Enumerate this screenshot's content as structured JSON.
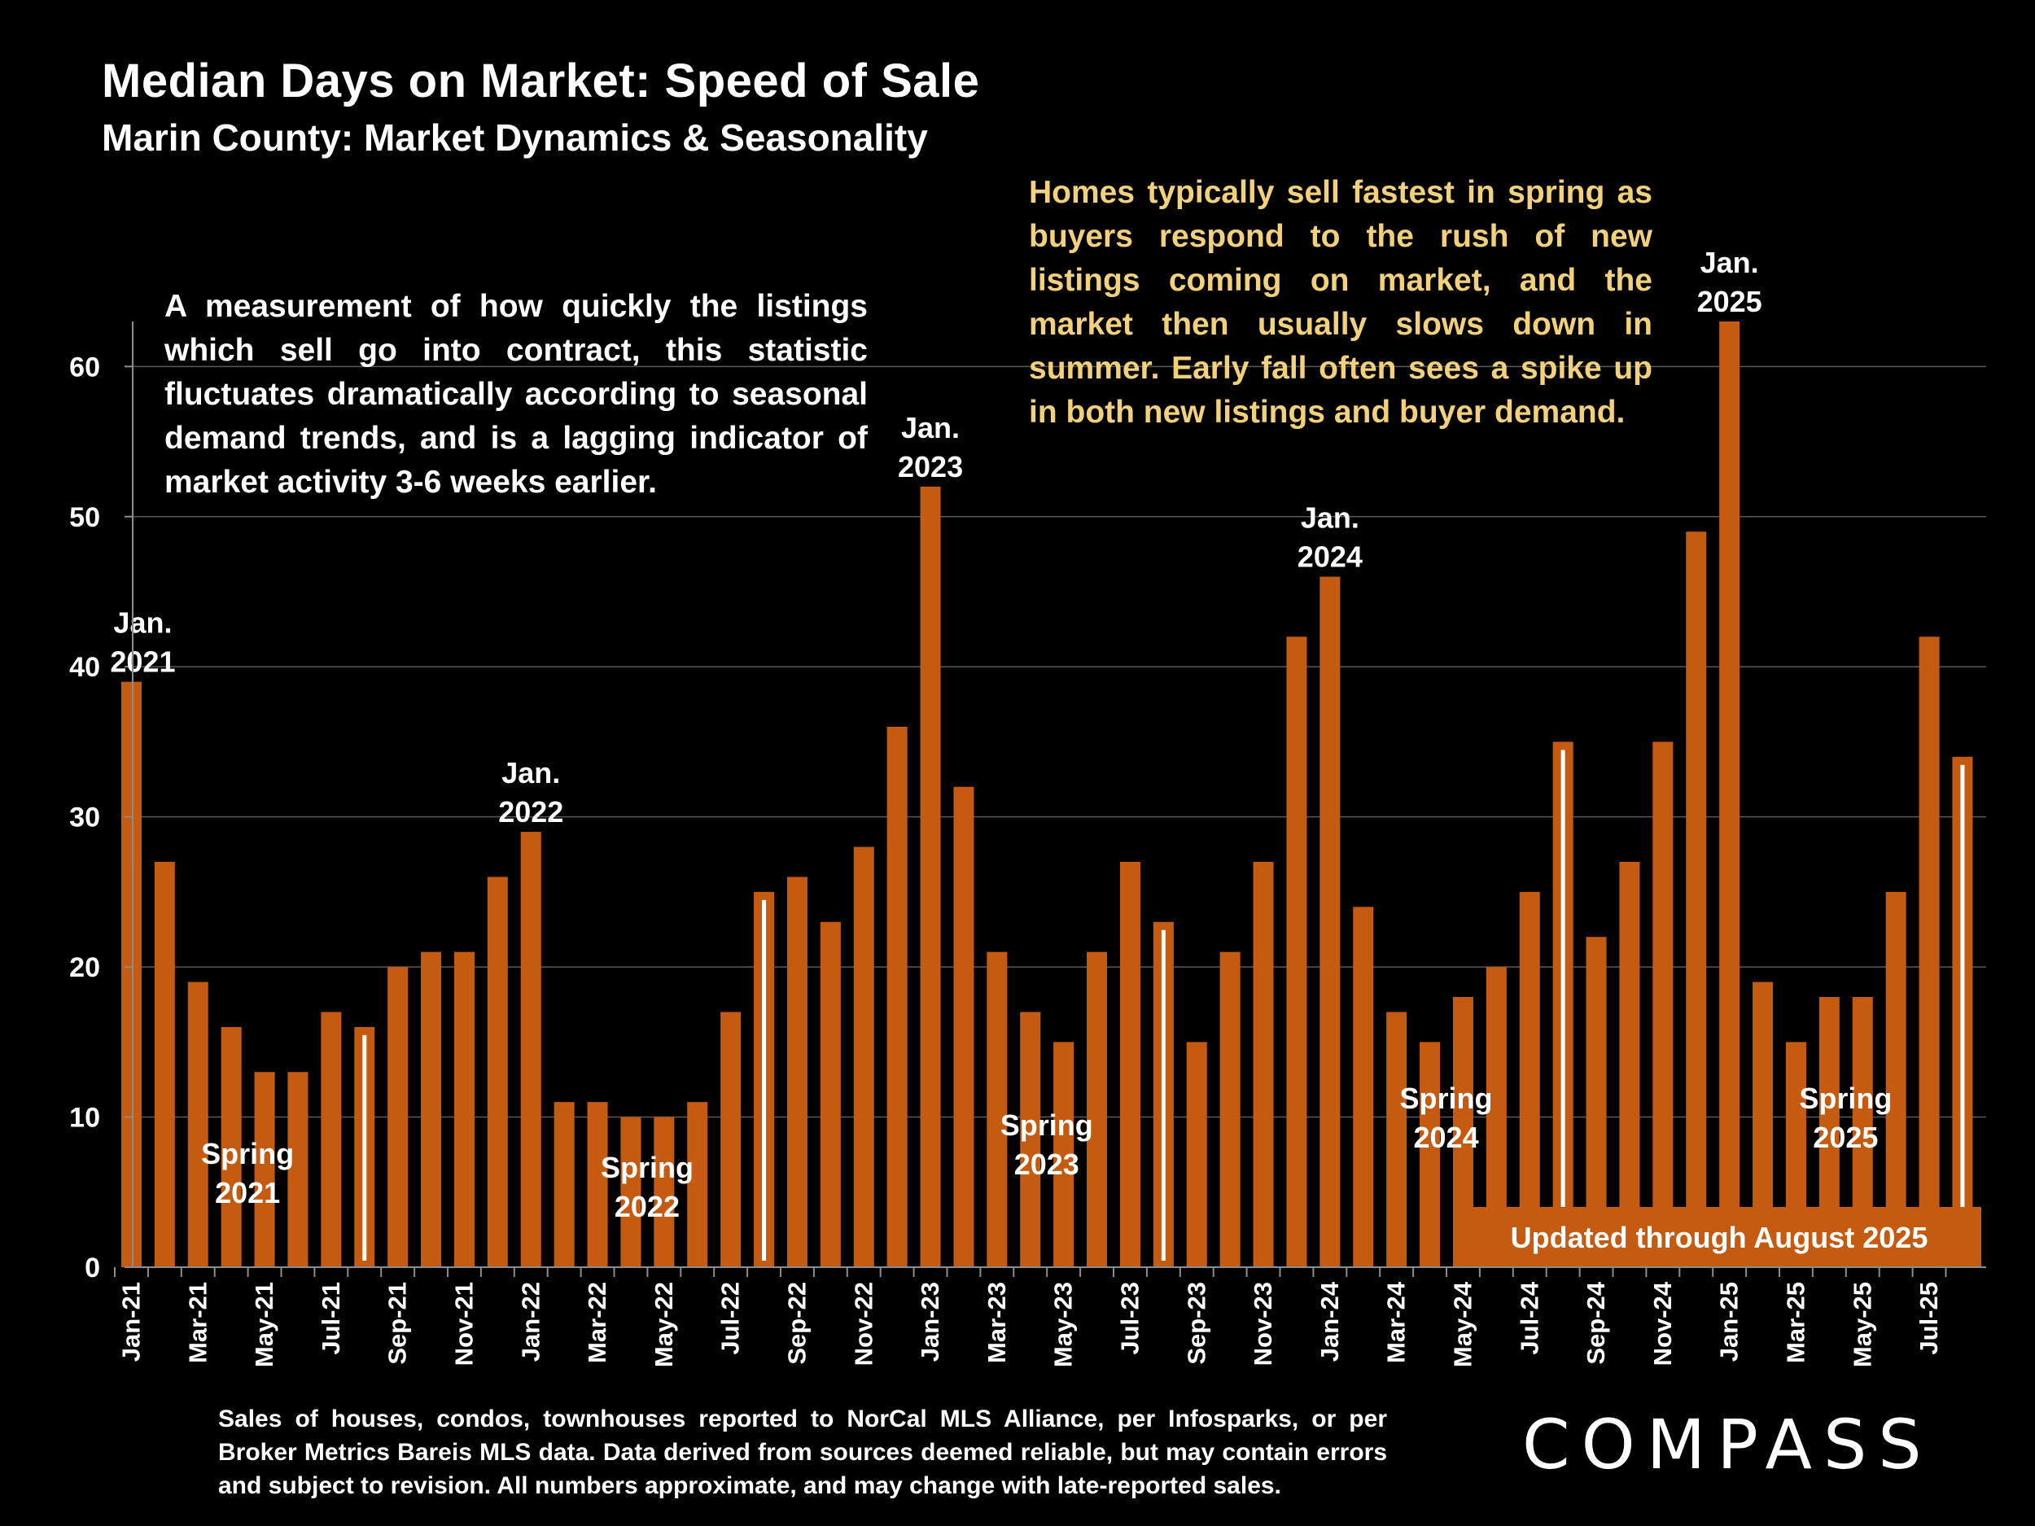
{
  "header": {
    "title": "Median Days on Market:  Speed of Sale",
    "subtitle": "Marin County: Market Dynamics & Seasonality"
  },
  "notes": {
    "left": "A measurement of how quickly the listings which sell go into contract, this statistic fluctuates dramatically according to seasonal demand trends, and is a lagging indicator of market activity 3-6 weeks earlier.",
    "right": "Homes typically sell fastest in spring as buyers respond to the rush of new listings coming on market, and the market then usually slows down in summer. Early fall often sees a spike up in both new listings and buyer demand."
  },
  "footer": {
    "source": "Sales of houses, condos, townhouses reported to NorCal MLS Alliance, per Infosparks, or per Broker Metrics Bareis MLS data. Data derived from sources deemed reliable, but may contain errors and subject to revision. All numbers approximate, and may change with late-reported sales.",
    "logo": "COMPASS"
  },
  "badge": {
    "text": "Updated through August 2025"
  },
  "colors": {
    "bar": "#c55a11",
    "background": "#000000",
    "gridline": "#595959",
    "note_highlight": "#f3d07a",
    "divider": "#ffffff"
  },
  "chart_data": {
    "type": "bar",
    "title": "Median Days on Market:  Speed of Sale",
    "subtitle": "Marin County: Market Dynamics & Seasonality",
    "xlabel": "",
    "ylabel": "",
    "ylim": [
      0,
      63
    ],
    "yticks": [
      0,
      10,
      20,
      30,
      40,
      50,
      60
    ],
    "grid": true,
    "categories": [
      "Jan-21",
      "Feb-21",
      "Mar-21",
      "Apr-21",
      "May-21",
      "Jun-21",
      "Jul-21",
      "Aug-21",
      "Sep-21",
      "Oct-21",
      "Nov-21",
      "Dec-21",
      "Jan-22",
      "Feb-22",
      "Mar-22",
      "Apr-22",
      "May-22",
      "Jun-22",
      "Jul-22",
      "Aug-22",
      "Sep-22",
      "Oct-22",
      "Nov-22",
      "Dec-22",
      "Jan-23",
      "Feb-23",
      "Mar-23",
      "Apr-23",
      "May-23",
      "Jun-23",
      "Jul-23",
      "Aug-23",
      "Sep-23",
      "Oct-23",
      "Nov-23",
      "Dec-23",
      "Jan-24",
      "Feb-24",
      "Mar-24",
      "Apr-24",
      "May-24",
      "Jun-24",
      "Jul-24",
      "Aug-24",
      "Sep-24",
      "Oct-24",
      "Nov-24",
      "Dec-24",
      "Jan-25",
      "Feb-25",
      "Mar-25",
      "Apr-25",
      "May-25",
      "Jun-25",
      "Jul-25",
      "Aug-25"
    ],
    "shown_tick_labels": [
      "Jan-21",
      "Mar-21",
      "May-21",
      "Jul-21",
      "Sep-21",
      "Nov-21",
      "Jan-22",
      "Mar-22",
      "May-22",
      "Jul-22",
      "Sep-22",
      "Nov-22",
      "Jan-23",
      "Mar-23",
      "May-23",
      "Jul-23",
      "Sep-23",
      "Nov-23",
      "Jan-24",
      "Mar-24",
      "May-24",
      "Jul-24",
      "Sep-24",
      "Nov-24",
      "Jan-25",
      "Mar-25",
      "May-25",
      "Jul-25"
    ],
    "values": [
      39,
      27,
      19,
      16,
      13,
      13,
      17,
      16,
      20,
      21,
      21,
      26,
      29,
      11,
      11,
      10,
      10,
      11,
      17,
      25,
      26,
      23,
      28,
      36,
      52,
      32,
      21,
      17,
      15,
      21,
      27,
      23,
      15,
      21,
      27,
      42,
      46,
      24,
      17,
      15,
      18,
      20,
      25,
      35,
      22,
      27,
      35,
      49,
      63,
      19,
      15,
      18,
      18,
      25,
      42,
      34
    ],
    "year_dividers_after": [
      "Aug-21",
      "Aug-22",
      "Aug-23",
      "Aug-24",
      "Aug-25"
    ],
    "annotations": [
      {
        "category": "Jan-21",
        "line1": "Jan.",
        "line2": "2021",
        "pos": "above-bar"
      },
      {
        "category": "Jan-22",
        "line1": "Jan.",
        "line2": "2022",
        "pos": "above-bar"
      },
      {
        "category": "Jan-23",
        "line1": "Jan.",
        "line2": "2023",
        "pos": "above-bar"
      },
      {
        "category": "Jan-24",
        "line1": "Jan.",
        "line2": "2024",
        "pos": "above-bar"
      },
      {
        "category": "Jan-25",
        "line1": "Jan.",
        "line2": "2025",
        "pos": "above-bar"
      },
      {
        "category": "Apr-21",
        "line1": "Spring",
        "line2": "2021",
        "pos": "low"
      },
      {
        "category": "Apr-22",
        "line1": "Spring",
        "line2": "2022",
        "pos": "low"
      },
      {
        "category": "Apr-23",
        "line1": "Spring",
        "line2": "2023",
        "pos": "low"
      },
      {
        "category": "Apr-24",
        "line1": "Spring",
        "line2": "2024",
        "pos": "low"
      },
      {
        "category": "Apr-25",
        "line1": "Spring",
        "line2": "2025",
        "pos": "low"
      }
    ]
  }
}
